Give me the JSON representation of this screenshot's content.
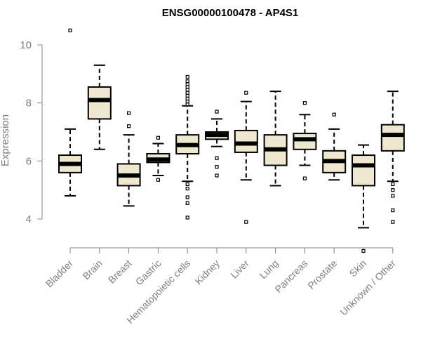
{
  "chart_data": {
    "type": "boxplot",
    "title": "ENSG00000100478 - AP4S1",
    "xlabel": "",
    "ylabel": "Expression",
    "ylim": [
      2.8,
      10.6
    ],
    "yticks": [
      4,
      6,
      8,
      10
    ],
    "categories": [
      "Bladder",
      "Brain",
      "Breast",
      "Gastric",
      "Hematopoietic cells",
      "Kidney",
      "Liver",
      "Lung",
      "Pancreas",
      "Prostate",
      "Skin",
      "Unknown / Other"
    ],
    "boxes": [
      {
        "category": "Bladder",
        "whisker_low": 4.8,
        "q1": 5.6,
        "median": 5.9,
        "q3": 6.2,
        "whisker_high": 7.1,
        "outliers": [
          10.5
        ]
      },
      {
        "category": "Brain",
        "whisker_low": 6.4,
        "q1": 7.45,
        "median": 8.1,
        "q3": 8.55,
        "whisker_high": 9.3,
        "outliers": []
      },
      {
        "category": "Breast",
        "whisker_low": 4.45,
        "q1": 5.15,
        "median": 5.5,
        "q3": 5.9,
        "whisker_high": 6.9,
        "outliers": [
          7.2,
          7.65
        ]
      },
      {
        "category": "Gastric",
        "whisker_low": 5.5,
        "q1": 5.95,
        "median": 6.05,
        "q3": 6.25,
        "whisker_high": 6.6,
        "outliers": [
          6.8,
          5.35
        ]
      },
      {
        "category": "Hematopoietic cells",
        "whisker_low": 5.3,
        "q1": 6.25,
        "median": 6.55,
        "q3": 6.9,
        "whisker_high": 7.9,
        "outliers": [
          7.95,
          8.05,
          8.15,
          8.25,
          8.35,
          8.45,
          8.55,
          8.65,
          8.75,
          8.9,
          5.2,
          5.05,
          4.75,
          4.55,
          4.05
        ]
      },
      {
        "category": "Kidney",
        "whisker_low": 6.5,
        "q1": 6.75,
        "median": 6.9,
        "q3": 7.0,
        "whisker_high": 7.45,
        "outliers": [
          7.7,
          6.1,
          5.8,
          5.5
        ]
      },
      {
        "category": "Liver",
        "whisker_low": 5.35,
        "q1": 6.3,
        "median": 6.6,
        "q3": 7.05,
        "whisker_high": 8.05,
        "outliers": [
          8.35,
          3.9
        ]
      },
      {
        "category": "Lung",
        "whisker_low": 5.15,
        "q1": 5.85,
        "median": 6.4,
        "q3": 6.9,
        "whisker_high": 8.4,
        "outliers": []
      },
      {
        "category": "Pancreas",
        "whisker_low": 5.85,
        "q1": 6.4,
        "median": 6.75,
        "q3": 6.95,
        "whisker_high": 7.6,
        "outliers": [
          8.0,
          5.4
        ]
      },
      {
        "category": "Prostate",
        "whisker_low": 5.35,
        "q1": 5.6,
        "median": 6.0,
        "q3": 6.35,
        "whisker_high": 7.1,
        "outliers": [
          7.6
        ]
      },
      {
        "category": "Skin",
        "whisker_low": 3.7,
        "q1": 5.15,
        "median": 5.85,
        "q3": 6.2,
        "whisker_high": 6.55,
        "outliers": [
          2.9
        ]
      },
      {
        "category": "Unknown / Other",
        "whisker_low": 5.3,
        "q1": 6.35,
        "median": 6.9,
        "q3": 7.25,
        "whisker_high": 8.4,
        "outliers": [
          5.2,
          5.0,
          4.8,
          4.3,
          3.9
        ]
      }
    ],
    "box_fill": "#efe8d0",
    "grid": false,
    "legend": "none"
  }
}
